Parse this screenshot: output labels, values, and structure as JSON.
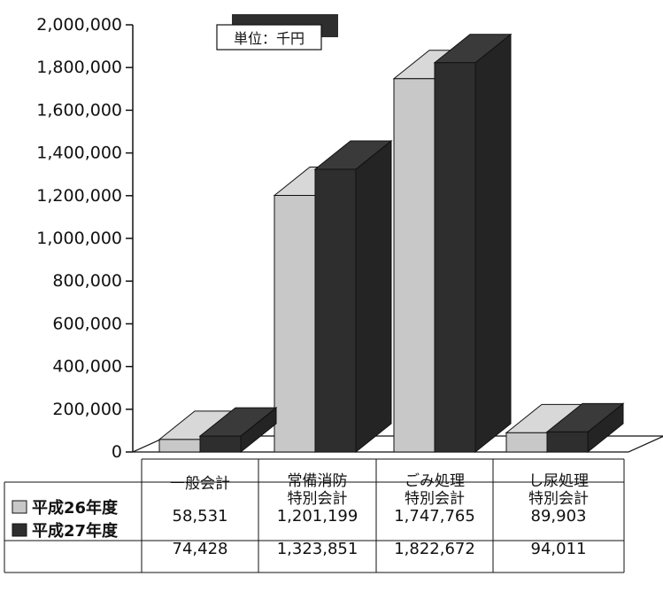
{
  "chart_data": {
    "type": "bar",
    "unit_note": "単位：千円",
    "categories": [
      [
        "一般会計"
      ],
      [
        "常備消防",
        "特別会計"
      ],
      [
        "ごみ処理",
        "特別会計"
      ],
      [
        "し尿処理",
        "特別会計"
      ]
    ],
    "series": [
      {
        "name": "平成26年度",
        "values": [
          58531,
          1201199,
          1747765,
          89903
        ],
        "labels": [
          "58,531",
          "1,201,199",
          "1,747,765",
          "89,903"
        ],
        "color": "#c8c8c8"
      },
      {
        "name": "平成27年度",
        "values": [
          74428,
          1323851,
          1822672,
          94011
        ],
        "labels": [
          "74,428",
          "1,323,851",
          "1,822,672",
          "94,011"
        ],
        "color": "#2e2e2e"
      }
    ],
    "yticks": [
      "0",
      "200,000",
      "400,000",
      "600,000",
      "800,000",
      "1,000,000",
      "1,200,000",
      "1,400,000",
      "1,600,000",
      "1,800,000",
      "2,000,000"
    ],
    "ylim": [
      0,
      2000000
    ],
    "grid": false,
    "legend": "bottom-left table"
  }
}
